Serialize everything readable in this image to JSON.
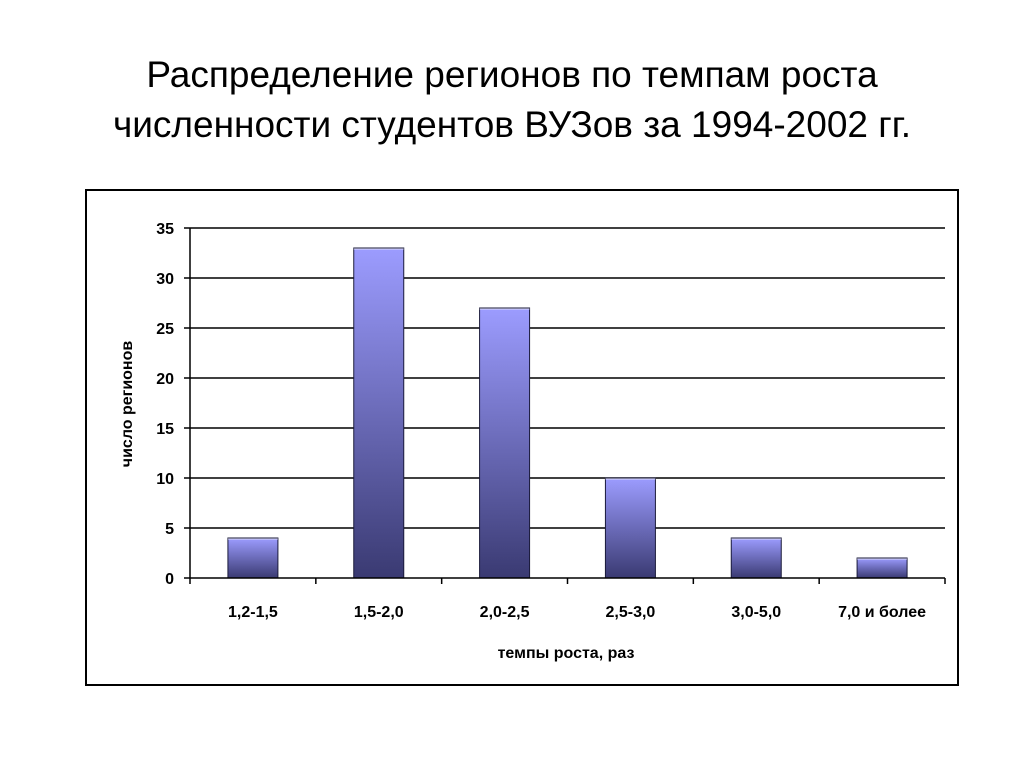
{
  "title": {
    "line1": "Распределение регионов по темпам роста",
    "line2": "численности студентов ВУЗов за 1994-2002 гг."
  },
  "colors": {
    "bar_top": "#9c9cff",
    "bar_bottom": "#3a3a72",
    "grid": "#000000",
    "frame": "#000000"
  },
  "chart_data": {
    "type": "bar",
    "categories": [
      "1,2-1,5",
      "1,5-2,0",
      "2,0-2,5",
      "2,5-3,0",
      "3,0-5,0",
      "7,0 и более"
    ],
    "values": [
      4,
      33,
      27,
      10,
      4,
      2
    ],
    "xlabel": "темпы роста, раз",
    "ylabel": "число регионов",
    "ylim": [
      0,
      35
    ],
    "yticks": [
      0,
      5,
      10,
      15,
      20,
      25,
      30,
      35
    ],
    "grid": true,
    "legend": "none"
  }
}
